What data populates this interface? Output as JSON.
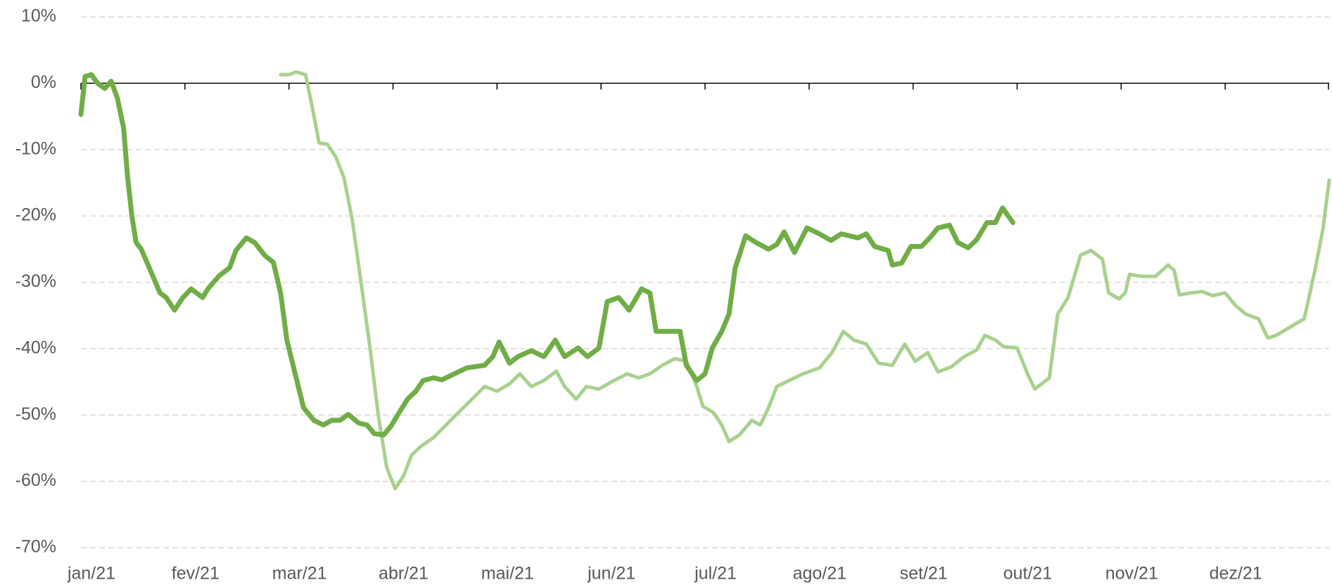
{
  "chart_data": {
    "type": "line",
    "xlim": [
      0,
      12
    ],
    "xticks": [
      {
        "value": 0,
        "label": "jan/21"
      },
      {
        "value": 1,
        "label": "fev/21"
      },
      {
        "value": 2,
        "label": "mar/21"
      },
      {
        "value": 3,
        "label": "abr/21"
      },
      {
        "value": 4,
        "label": "mai/21"
      },
      {
        "value": 5,
        "label": "jun/21"
      },
      {
        "value": 6,
        "label": "jul/21"
      },
      {
        "value": 7,
        "label": "ago/21"
      },
      {
        "value": 8,
        "label": "set/21"
      },
      {
        "value": 9,
        "label": "out/21"
      },
      {
        "value": 10,
        "label": "nov/21"
      },
      {
        "value": 11,
        "label": "dez/21"
      }
    ],
    "ylim": [
      -70,
      10
    ],
    "yticks": [
      {
        "value": 10,
        "label": "10%"
      },
      {
        "value": 0,
        "label": "0%"
      },
      {
        "value": -10,
        "label": "-10%"
      },
      {
        "value": -20,
        "label": "-20%"
      },
      {
        "value": -30,
        "label": "-30%"
      },
      {
        "value": -40,
        "label": "-40%"
      },
      {
        "value": -50,
        "label": "-50%"
      },
      {
        "value": -60,
        "label": "-60%"
      },
      {
        "value": -70,
        "label": "-70%"
      }
    ],
    "grid": true,
    "series": [
      {
        "color": "#70ad47",
        "x": [
          0,
          0.04,
          0.1,
          0.16,
          0.23,
          0.29,
          0.35,
          0.41,
          0.45,
          0.49,
          0.53,
          0.58,
          0.69,
          0.76,
          0.82,
          0.9,
          0.98,
          1.06,
          1.17,
          1.22,
          1.33,
          1.43,
          1.49,
          1.59,
          1.67,
          1.77,
          1.85,
          1.92,
          1.98,
          2.06,
          2.14,
          2.24,
          2.33,
          2.41,
          2.49,
          2.57,
          2.67,
          2.75,
          2.82,
          2.91,
          2.98,
          3.06,
          3.14,
          3.22,
          3.29,
          3.39,
          3.47,
          3.59,
          3.71,
          3.88,
          3.96,
          4.02,
          4.12,
          4.2,
          4.33,
          4.45,
          4.56,
          4.65,
          4.78,
          4.87,
          4.98,
          5.06,
          5.17,
          5.27,
          5.39,
          5.47,
          5.53,
          5.63,
          5.76,
          5.82,
          5.92,
          6,
          6.07,
          6.16,
          6.23,
          6.29,
          6.39,
          6.49,
          6.61,
          6.69,
          6.76,
          6.86,
          6.98,
          7.1,
          7.21,
          7.31,
          7.47,
          7.55,
          7.63,
          7.76,
          7.8,
          7.89,
          7.98,
          8.08,
          8.16,
          8.24,
          8.35,
          8.43,
          8.53,
          8.61,
          8.71,
          8.79,
          8.86,
          8.96
        ],
        "values": [
          -4.7,
          1,
          1.3,
          0,
          -0.8,
          0.3,
          -2.2,
          -6.7,
          -14.3,
          -20,
          -24,
          -25,
          -29,
          -31.6,
          -32.3,
          -34.2,
          -32.3,
          -31,
          -32.3,
          -31,
          -29,
          -27.8,
          -25.2,
          -23.3,
          -24,
          -26,
          -27,
          -31.6,
          -38.7,
          -43.8,
          -48.9,
          -50.8,
          -51.5,
          -50.8,
          -50.8,
          -49.9,
          -51.2,
          -51.5,
          -52.8,
          -53,
          -51.7,
          -49.6,
          -47.6,
          -46.4,
          -44.8,
          -44.4,
          -44.7,
          -43.8,
          -42.9,
          -42.5,
          -41.2,
          -39,
          -42.2,
          -41.2,
          -40.3,
          -41.2,
          -38.7,
          -41.2,
          -39.9,
          -41.2,
          -39.9,
          -32.9,
          -32.3,
          -34.2,
          -31,
          -31.6,
          -37.4,
          -37.4,
          -37.4,
          -42.5,
          -44.8,
          -43.8,
          -39.9,
          -37.4,
          -34.8,
          -27.8,
          -23,
          -24,
          -25,
          -24.3,
          -22.4,
          -25.5,
          -21.8,
          -22.7,
          -23.7,
          -22.7,
          -23.3,
          -22.7,
          -24.6,
          -25.2,
          -27.4,
          -27.1,
          -24.6,
          -24.6,
          -23.3,
          -21.8,
          -21.4,
          -24,
          -24.8,
          -23.6,
          -21,
          -21,
          -18.8,
          -21
        ]
      },
      {
        "color": "#a9d18e",
        "x": [
          1.92,
          2,
          2.07,
          2.16,
          2.23,
          2.29,
          2.37,
          2.45,
          2.53,
          2.61,
          2.69,
          2.78,
          2.86,
          2.94,
          3.02,
          3.1,
          3.18,
          3.27,
          3.39,
          3.51,
          3.63,
          3.76,
          3.88,
          4,
          4.12,
          4.22,
          4.33,
          4.45,
          4.57,
          4.65,
          4.76,
          4.86,
          4.98,
          5.1,
          5.25,
          5.36,
          5.47,
          5.59,
          5.71,
          5.82,
          5.92,
          5.98,
          6.08,
          6.16,
          6.23,
          6.33,
          6.45,
          6.53,
          6.61,
          6.69,
          6.82,
          6.94,
          7.1,
          7.22,
          7.33,
          7.43,
          7.55,
          7.67,
          7.8,
          7.92,
          8.02,
          8.14,
          8.24,
          8.37,
          8.49,
          8.61,
          8.69,
          8.79,
          8.87,
          9,
          9.1,
          9.17,
          9.31,
          9.39,
          9.49,
          9.61,
          9.71,
          9.82,
          9.88,
          9.98,
          10.04,
          10.08,
          10.2,
          10.33,
          10.45,
          10.51,
          10.56,
          10.67,
          10.78,
          10.88,
          11,
          11.1,
          11.2,
          11.32,
          11.41,
          11.49,
          11.63,
          11.76,
          11.86,
          11.94,
          12
        ],
        "values": [
          1.3,
          1.3,
          1.7,
          1.3,
          -4.1,
          -9,
          -9.2,
          -11.1,
          -14.3,
          -20.7,
          -29.7,
          -40,
          -50.2,
          -57.9,
          -61.1,
          -59.2,
          -56,
          -54.7,
          -53.4,
          -51.5,
          -49.6,
          -47.6,
          -45.7,
          -46.4,
          -45.3,
          -43.8,
          -45.7,
          -44.8,
          -43.4,
          -45.7,
          -47.6,
          -45.7,
          -46.1,
          -45,
          -43.8,
          -44.4,
          -43.8,
          -42.5,
          -41.5,
          -41.9,
          -45.7,
          -48.7,
          -49.6,
          -51.5,
          -54,
          -53,
          -50.8,
          -51.5,
          -48.9,
          -45.7,
          -44.7,
          -43.8,
          -42.9,
          -40.6,
          -37.4,
          -38.7,
          -39.3,
          -42.2,
          -42.5,
          -39.3,
          -41.9,
          -40.6,
          -43.5,
          -42.7,
          -41.2,
          -40.2,
          -38,
          -38.7,
          -39.7,
          -39.9,
          -43.8,
          -46.1,
          -44.4,
          -34.8,
          -32.3,
          -25.9,
          -25.2,
          -26.5,
          -31.6,
          -32.5,
          -31.6,
          -28.8,
          -29.1,
          -29.1,
          -27.4,
          -28.2,
          -31.9,
          -31.6,
          -31.4,
          -32,
          -31.6,
          -33.5,
          -34.8,
          -35.5,
          -38.4,
          -38,
          -36.7,
          -35.5,
          -28.4,
          -22,
          -14.6
        ]
      }
    ]
  }
}
